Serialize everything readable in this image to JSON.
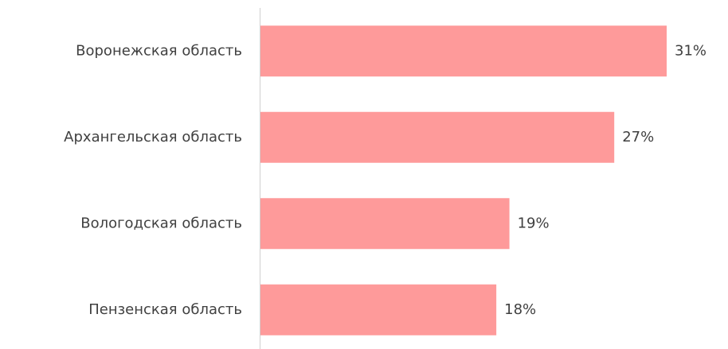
{
  "chart_data": {
    "type": "bar",
    "orientation": "horizontal",
    "categories": [
      "Воронежская область",
      "Архангельская область",
      "Вологодская область",
      "Пензенская область"
    ],
    "values": [
      31,
      27,
      19,
      18
    ],
    "value_labels": [
      "31%",
      "27%",
      "19%",
      "18%"
    ],
    "color": "#fe9a9a"
  }
}
